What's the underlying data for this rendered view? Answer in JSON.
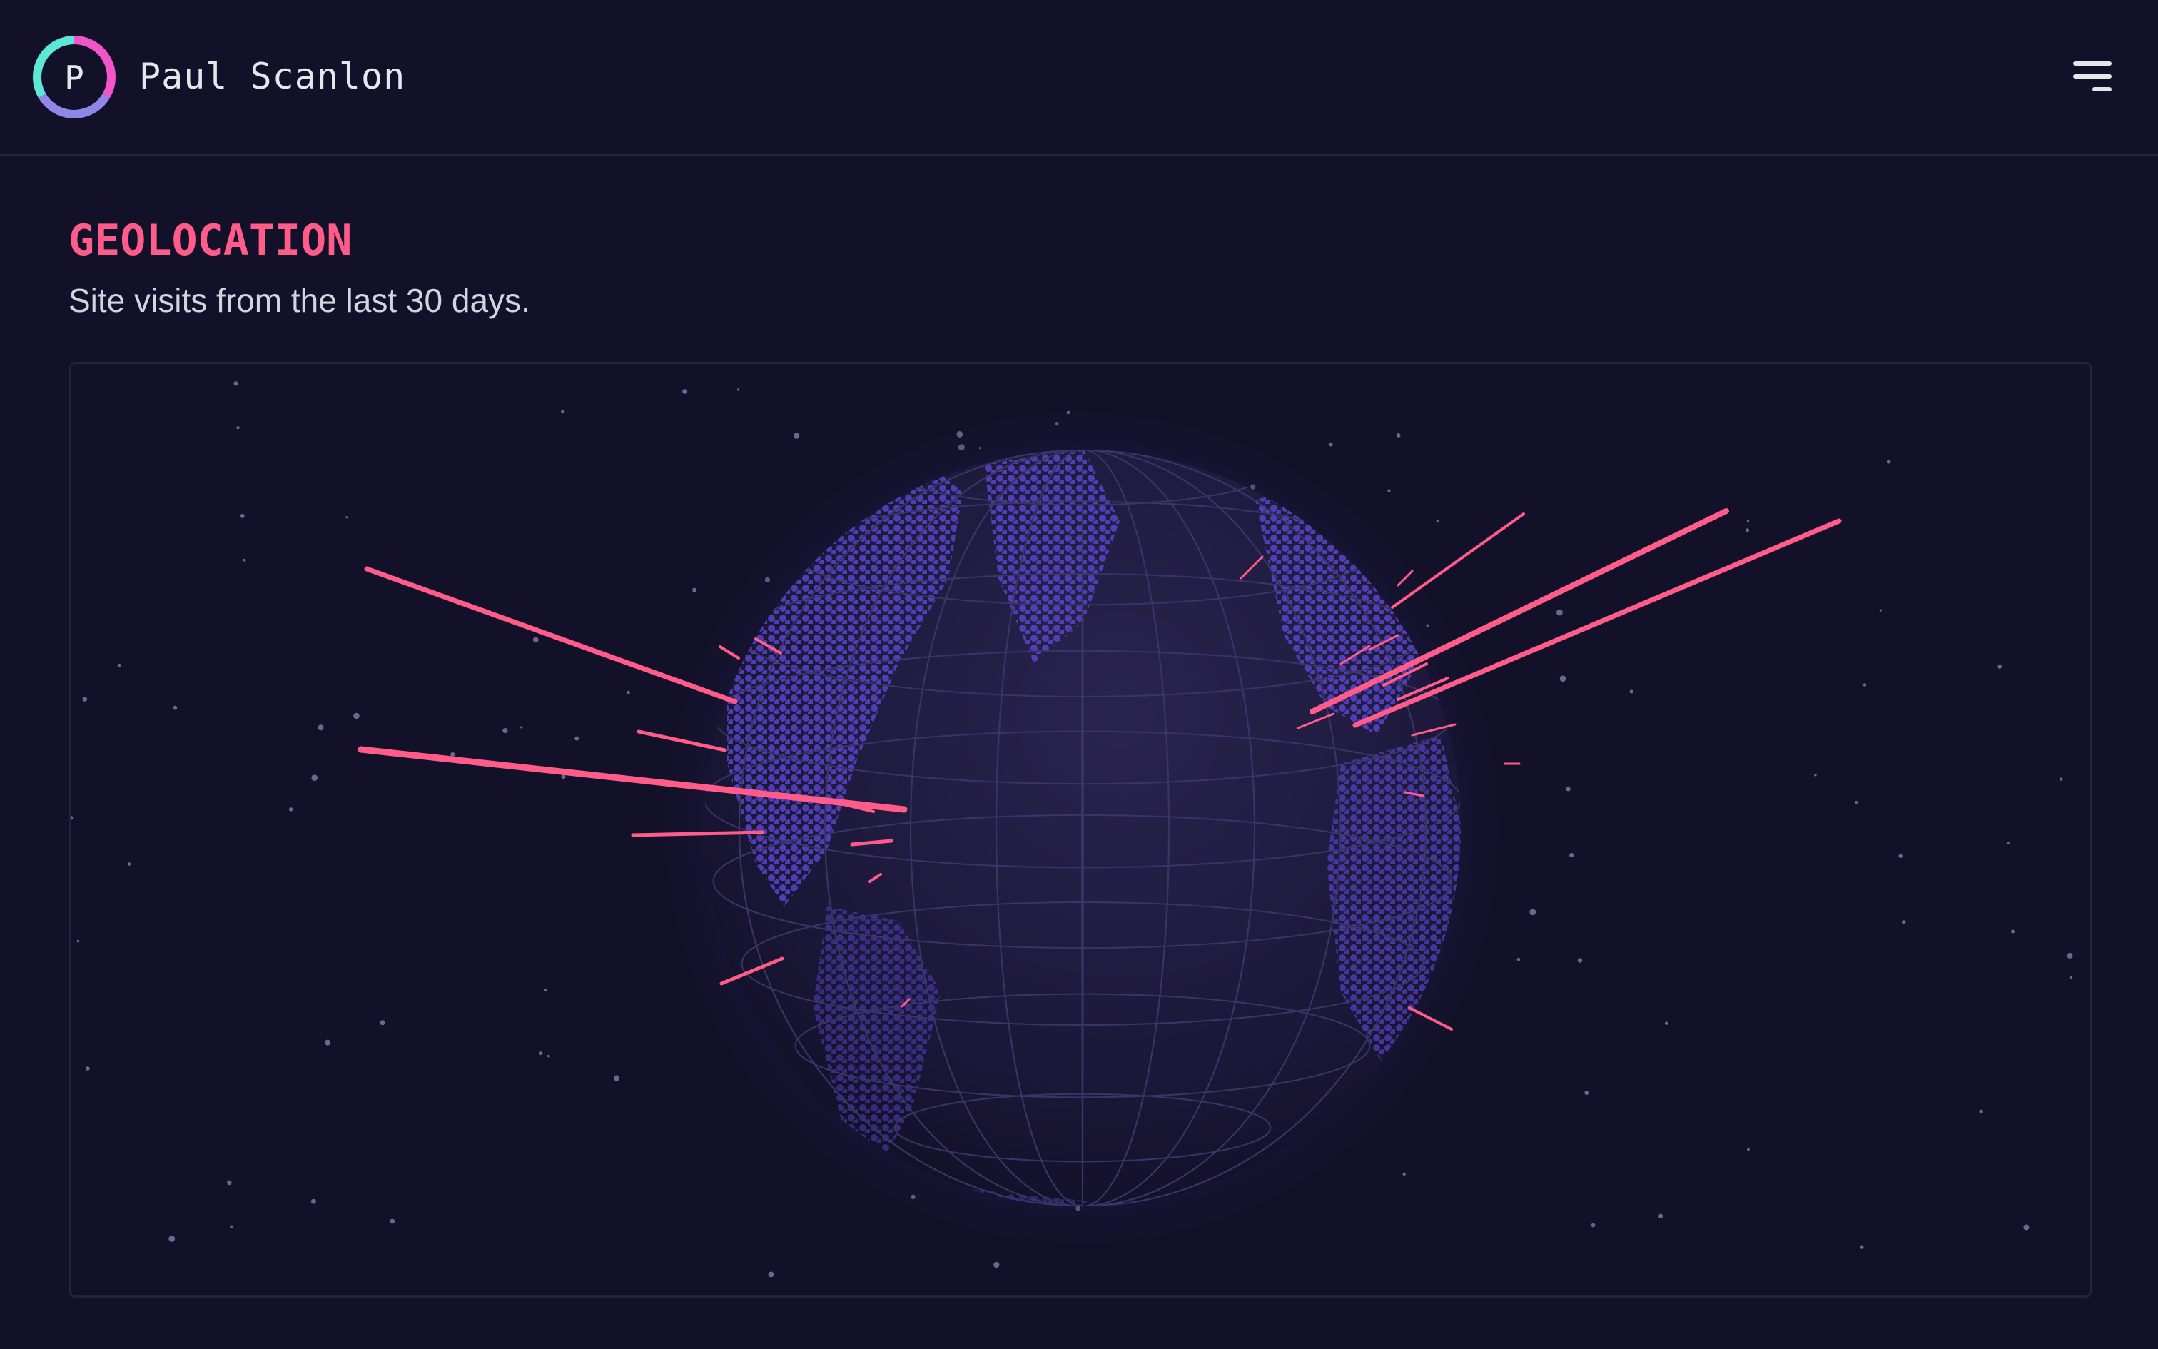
{
  "header": {
    "logo_letter": "P",
    "site_name": "Paul Scanlon",
    "menu_icon": "hamburger-menu-icon"
  },
  "main": {
    "title": "GEOLOCATION",
    "subtitle": "Site visits from the last 30 days."
  },
  "colors": {
    "background": "#13112a",
    "accent": "#ff5c8a",
    "globe_dots": "#5b45c9",
    "logo_ring": [
      "#5ee6d6",
      "#f255c8",
      "#8f86e8"
    ]
  }
}
